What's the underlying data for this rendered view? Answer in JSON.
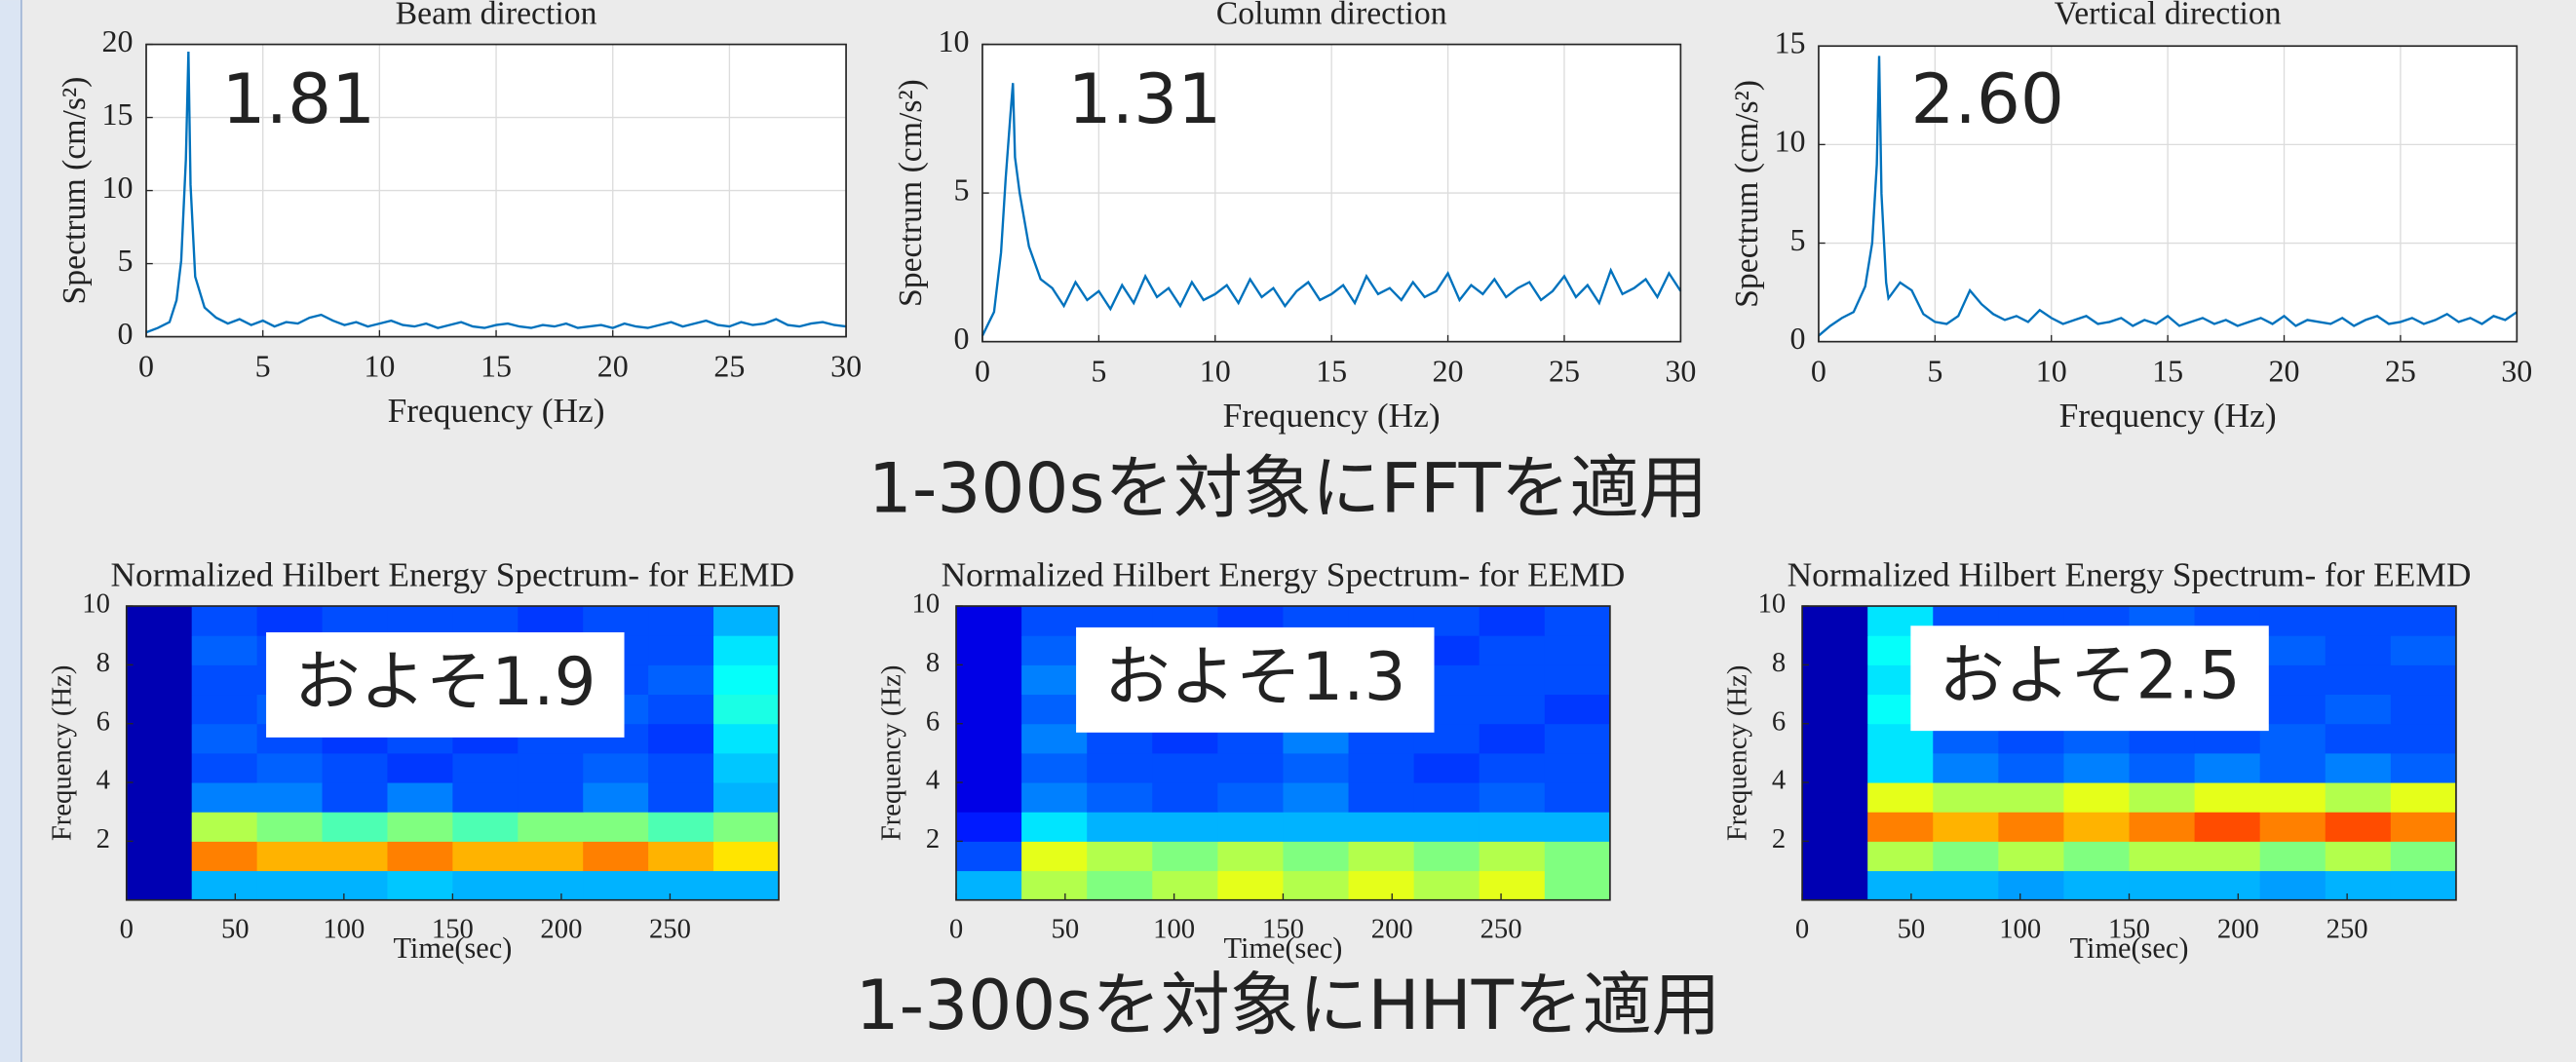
{
  "chart_data": [
    {
      "type": "line",
      "title": "Beam direction",
      "xlabel": "Frequency (Hz)",
      "ylabel": "Spectrum (cm/s²)",
      "annotation": "1.81",
      "color": "#0072bd",
      "grid": true,
      "xlim": [
        0,
        30
      ],
      "xticks": [
        0,
        5,
        10,
        15,
        20,
        25,
        30
      ],
      "ylim": [
        0,
        20
      ],
      "yticks": [
        0,
        5,
        10,
        15,
        20
      ],
      "x": [
        0,
        0.5,
        1,
        1.3,
        1.5,
        1.7,
        1.81,
        1.9,
        2.1,
        2.5,
        3,
        3.5,
        4,
        4.5,
        5,
        5.5,
        6,
        6.5,
        7,
        7.5,
        8,
        8.5,
        9,
        9.5,
        10,
        10.5,
        11,
        11.5,
        12,
        12.5,
        13,
        13.5,
        14,
        14.5,
        15,
        15.5,
        16,
        16.5,
        17,
        17.5,
        18,
        18.5,
        19,
        19.5,
        20,
        20.5,
        21,
        21.5,
        22,
        22.5,
        23,
        23.5,
        24,
        24.5,
        25,
        25.5,
        26,
        26.5,
        27,
        27.5,
        28,
        28.5,
        29,
        29.5,
        30
      ],
      "values": [
        0.3,
        0.6,
        1.0,
        2.5,
        5.2,
        12.1,
        19.5,
        10.4,
        4.1,
        2.0,
        1.3,
        0.9,
        1.2,
        0.8,
        1.1,
        0.7,
        1.0,
        0.9,
        1.3,
        1.5,
        1.1,
        0.8,
        1.0,
        0.7,
        0.9,
        1.1,
        0.8,
        0.7,
        0.9,
        0.6,
        0.8,
        1.0,
        0.7,
        0.6,
        0.8,
        0.9,
        0.7,
        0.6,
        0.8,
        0.7,
        0.9,
        0.6,
        0.7,
        0.8,
        0.6,
        0.9,
        0.7,
        0.6,
        0.8,
        1.0,
        0.7,
        0.9,
        1.1,
        0.8,
        0.7,
        1.0,
        0.8,
        0.9,
        1.2,
        0.8,
        0.7,
        0.9,
        1.0,
        0.8,
        0.7
      ]
    },
    {
      "type": "line",
      "title": "Column direction",
      "xlabel": "Frequency (Hz)",
      "ylabel": "Spectrum (cm/s²)",
      "annotation": "1.31",
      "color": "#0072bd",
      "grid": true,
      "xlim": [
        0,
        30
      ],
      "xticks": [
        0,
        5,
        10,
        15,
        20,
        25,
        30
      ],
      "ylim": [
        0,
        10
      ],
      "yticks": [
        0,
        5,
        10
      ],
      "x": [
        0,
        0.5,
        0.8,
        1.0,
        1.2,
        1.31,
        1.4,
        1.6,
        2.0,
        2.5,
        3,
        3.5,
        4,
        4.5,
        5,
        5.5,
        6,
        6.5,
        7,
        7.5,
        8,
        8.5,
        9,
        9.5,
        10,
        10.5,
        11,
        11.5,
        12,
        12.5,
        13,
        13.5,
        14,
        14.5,
        15,
        15.5,
        16,
        16.5,
        17,
        17.5,
        18,
        18.5,
        19,
        19.5,
        20,
        20.5,
        21,
        21.5,
        22,
        22.5,
        23,
        23.5,
        24,
        24.5,
        25,
        25.5,
        26,
        26.5,
        27,
        27.5,
        28,
        28.5,
        29,
        29.5,
        30
      ],
      "values": [
        0.2,
        1.0,
        3.0,
        5.5,
        7.6,
        8.7,
        6.2,
        5.0,
        3.2,
        2.1,
        1.8,
        1.2,
        2.0,
        1.4,
        1.7,
        1.1,
        1.9,
        1.3,
        2.2,
        1.5,
        1.8,
        1.2,
        2.0,
        1.4,
        1.6,
        1.9,
        1.3,
        2.1,
        1.5,
        1.8,
        1.2,
        1.7,
        2.0,
        1.4,
        1.6,
        1.9,
        1.3,
        2.2,
        1.6,
        1.8,
        1.4,
        2.0,
        1.5,
        1.7,
        2.3,
        1.4,
        1.9,
        1.6,
        2.1,
        1.5,
        1.8,
        2.0,
        1.4,
        1.7,
        2.2,
        1.5,
        1.9,
        1.3,
        2.4,
        1.6,
        1.8,
        2.1,
        1.5,
        2.3,
        1.7
      ]
    },
    {
      "type": "line",
      "title": "Vertical direction",
      "xlabel": "Frequency (Hz)",
      "ylabel": "Spectrum (cm/s²)",
      "annotation": "2.60",
      "color": "#0072bd",
      "grid": true,
      "xlim": [
        0,
        30
      ],
      "xticks": [
        0,
        5,
        10,
        15,
        20,
        25,
        30
      ],
      "ylim": [
        0,
        15
      ],
      "yticks": [
        0,
        5,
        10,
        15
      ],
      "x": [
        0,
        0.5,
        1,
        1.5,
        2,
        2.3,
        2.5,
        2.6,
        2.7,
        2.9,
        3,
        3.5,
        4,
        4.5,
        5,
        5.5,
        6,
        6.5,
        7,
        7.5,
        8,
        8.5,
        9,
        9.5,
        10,
        10.5,
        11,
        11.5,
        12,
        12.5,
        13,
        13.5,
        14,
        14.5,
        15,
        15.5,
        16,
        16.5,
        17,
        17.5,
        18,
        18.5,
        19,
        19.5,
        20,
        20.5,
        21,
        21.5,
        22,
        22.5,
        23,
        23.5,
        24,
        24.5,
        25,
        25.5,
        26,
        26.5,
        27,
        27.5,
        28,
        28.5,
        29,
        29.5,
        30
      ],
      "values": [
        0.3,
        0.8,
        1.2,
        1.5,
        2.8,
        5.0,
        9.0,
        14.5,
        7.5,
        3.0,
        2.2,
        3.0,
        2.6,
        1.4,
        1.0,
        0.9,
        1.3,
        2.6,
        1.9,
        1.4,
        1.1,
        1.3,
        1.0,
        1.6,
        1.2,
        0.9,
        1.1,
        1.3,
        0.9,
        1.0,
        1.2,
        0.8,
        1.1,
        0.9,
        1.3,
        0.8,
        1.0,
        1.2,
        0.9,
        1.1,
        0.8,
        1.0,
        1.2,
        0.9,
        1.3,
        0.8,
        1.1,
        1.0,
        0.9,
        1.2,
        0.8,
        1.1,
        1.3,
        0.9,
        1.0,
        1.2,
        0.9,
        1.1,
        1.4,
        1.0,
        1.2,
        0.9,
        1.3,
        1.1,
        1.5
      ]
    },
    {
      "type": "heatmap",
      "title": "Normalized Hilbert Energy Spectrum- for EEMD",
      "xlabel": "Time(sec)",
      "ylabel": "Frequency (Hz)",
      "annotation": "およそ1.9",
      "colormap": "jet",
      "zlim": [
        0,
        1
      ],
      "xlim": [
        0,
        300
      ],
      "xticks": [
        0,
        50,
        100,
        150,
        200,
        250
      ],
      "ylim": [
        0,
        10
      ],
      "yticks": [
        2,
        4,
        6,
        8,
        10
      ],
      "time_bins": [
        0,
        30,
        60,
        90,
        120,
        150,
        180,
        210,
        240,
        270,
        300
      ],
      "freq_bins": [
        0,
        1,
        2,
        3,
        4,
        5,
        6,
        7,
        8,
        9,
        10
      ],
      "values": [
        [
          0.05,
          0.3,
          0.3,
          0.3,
          0.32,
          0.3,
          0.3,
          0.3,
          0.3,
          0.3
        ],
        [
          0.05,
          0.75,
          0.7,
          0.7,
          0.75,
          0.7,
          0.7,
          0.75,
          0.7,
          0.65
        ],
        [
          0.05,
          0.55,
          0.5,
          0.45,
          0.5,
          0.45,
          0.5,
          0.5,
          0.45,
          0.5
        ],
        [
          0.05,
          0.25,
          0.25,
          0.2,
          0.25,
          0.2,
          0.2,
          0.25,
          0.2,
          0.3
        ],
        [
          0.05,
          0.2,
          0.22,
          0.2,
          0.18,
          0.2,
          0.2,
          0.22,
          0.2,
          0.32
        ],
        [
          0.05,
          0.22,
          0.2,
          0.18,
          0.2,
          0.18,
          0.2,
          0.2,
          0.18,
          0.35
        ],
        [
          0.05,
          0.2,
          0.22,
          0.2,
          0.2,
          0.18,
          0.2,
          0.22,
          0.2,
          0.4
        ],
        [
          0.05,
          0.2,
          0.2,
          0.22,
          0.18,
          0.2,
          0.18,
          0.2,
          0.22,
          0.38
        ],
        [
          0.05,
          0.22,
          0.2,
          0.2,
          0.2,
          0.18,
          0.2,
          0.2,
          0.2,
          0.35
        ],
        [
          0.05,
          0.2,
          0.18,
          0.2,
          0.2,
          0.2,
          0.18,
          0.2,
          0.2,
          0.3
        ]
      ]
    },
    {
      "type": "heatmap",
      "title": "Normalized Hilbert Energy Spectrum- for EEMD",
      "xlabel": "Time(sec)",
      "ylabel": "Frequency (Hz)",
      "annotation": "およそ1.3",
      "colormap": "jet",
      "zlim": [
        0,
        1
      ],
      "xlim": [
        0,
        300
      ],
      "xticks": [
        0,
        50,
        100,
        150,
        200,
        250
      ],
      "ylim": [
        0,
        10
      ],
      "yticks": [
        2,
        4,
        6,
        8,
        10
      ],
      "time_bins": [
        0,
        30,
        60,
        90,
        120,
        150,
        180,
        210,
        240,
        270,
        300
      ],
      "freq_bins": [
        0,
        1,
        2,
        3,
        4,
        5,
        6,
        7,
        8,
        9,
        10
      ],
      "values": [
        [
          0.3,
          0.55,
          0.5,
          0.55,
          0.6,
          0.55,
          0.6,
          0.55,
          0.6,
          0.5
        ],
        [
          0.2,
          0.6,
          0.55,
          0.5,
          0.55,
          0.5,
          0.55,
          0.5,
          0.55,
          0.5
        ],
        [
          0.15,
          0.35,
          0.3,
          0.3,
          0.3,
          0.3,
          0.3,
          0.3,
          0.3,
          0.3
        ],
        [
          0.1,
          0.25,
          0.22,
          0.2,
          0.22,
          0.25,
          0.2,
          0.2,
          0.22,
          0.2
        ],
        [
          0.1,
          0.22,
          0.2,
          0.2,
          0.2,
          0.22,
          0.2,
          0.18,
          0.2,
          0.2
        ],
        [
          0.1,
          0.25,
          0.2,
          0.18,
          0.2,
          0.25,
          0.2,
          0.2,
          0.18,
          0.2
        ],
        [
          0.1,
          0.22,
          0.2,
          0.2,
          0.18,
          0.22,
          0.2,
          0.2,
          0.2,
          0.18
        ],
        [
          0.1,
          0.25,
          0.2,
          0.2,
          0.2,
          0.22,
          0.18,
          0.2,
          0.2,
          0.2
        ],
        [
          0.1,
          0.22,
          0.2,
          0.18,
          0.2,
          0.2,
          0.2,
          0.18,
          0.2,
          0.2
        ],
        [
          0.1,
          0.2,
          0.2,
          0.2,
          0.18,
          0.2,
          0.2,
          0.2,
          0.18,
          0.2
        ]
      ]
    },
    {
      "type": "heatmap",
      "title": "Normalized Hilbert Energy Spectrum- for EEMD",
      "xlabel": "Time(sec)",
      "ylabel": "Frequency (Hz)",
      "annotation": "およそ2.5",
      "colormap": "jet",
      "zlim": [
        0,
        1
      ],
      "xlim": [
        0,
        300
      ],
      "xticks": [
        0,
        50,
        100,
        150,
        200,
        250
      ],
      "ylim": [
        0,
        10
      ],
      "yticks": [
        2,
        4,
        6,
        8,
        10
      ],
      "time_bins": [
        0,
        30,
        60,
        90,
        120,
        150,
        180,
        210,
        240,
        270,
        300
      ],
      "freq_bins": [
        0,
        1,
        2,
        3,
        4,
        5,
        6,
        7,
        8,
        9,
        10
      ],
      "values": [
        [
          0.05,
          0.3,
          0.3,
          0.28,
          0.3,
          0.3,
          0.3,
          0.28,
          0.3,
          0.3
        ],
        [
          0.05,
          0.55,
          0.5,
          0.55,
          0.5,
          0.55,
          0.55,
          0.5,
          0.55,
          0.5
        ],
        [
          0.05,
          0.75,
          0.7,
          0.75,
          0.7,
          0.75,
          0.8,
          0.75,
          0.8,
          0.75
        ],
        [
          0.05,
          0.6,
          0.55,
          0.55,
          0.6,
          0.55,
          0.6,
          0.6,
          0.55,
          0.6
        ],
        [
          0.05,
          0.35,
          0.25,
          0.22,
          0.25,
          0.22,
          0.25,
          0.22,
          0.25,
          0.22
        ],
        [
          0.05,
          0.35,
          0.22,
          0.2,
          0.22,
          0.2,
          0.2,
          0.22,
          0.2,
          0.2
        ],
        [
          0.05,
          0.38,
          0.22,
          0.2,
          0.2,
          0.22,
          0.2,
          0.2,
          0.22,
          0.2
        ],
        [
          0.05,
          0.35,
          0.2,
          0.22,
          0.2,
          0.2,
          0.22,
          0.2,
          0.2,
          0.2
        ],
        [
          0.05,
          0.38,
          0.22,
          0.2,
          0.22,
          0.2,
          0.2,
          0.22,
          0.2,
          0.22
        ],
        [
          0.05,
          0.35,
          0.2,
          0.2,
          0.2,
          0.22,
          0.2,
          0.2,
          0.2,
          0.2
        ]
      ]
    }
  ],
  "captions": [
    "1-300sを対象にFFTを適用",
    "1-300sを対象にHHTを適用"
  ]
}
